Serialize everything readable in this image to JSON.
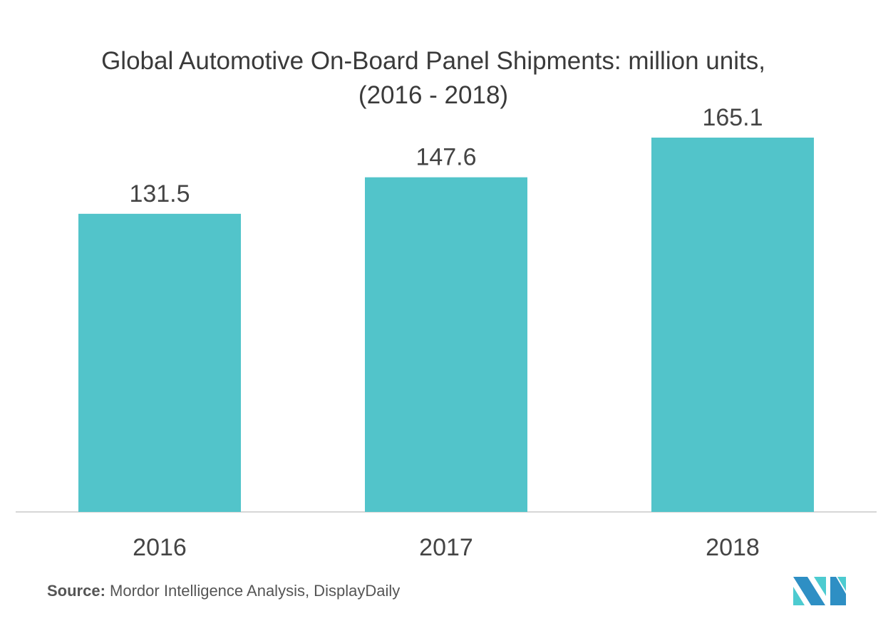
{
  "chart_data": {
    "type": "bar",
    "title": "Global Automotive On-Board Panel Shipments: million units, (2016 - 2018)",
    "categories": [
      "2016",
      "2017",
      "2018"
    ],
    "values": [
      131.5,
      147.6,
      165.1
    ],
    "value_labels": [
      "131.5",
      "147.6",
      "165.1"
    ],
    "xlabel": "",
    "ylabel": "",
    "ylim": [
      0,
      225.8
    ],
    "grid": false,
    "bar_color": "#52C4CA"
  },
  "source": {
    "label": "Source:",
    "text": "Mordor Intelligence Analysis, DisplayDaily"
  },
  "logo": {
    "colors": [
      "#2E8FC4",
      "#4DCBD0"
    ]
  }
}
